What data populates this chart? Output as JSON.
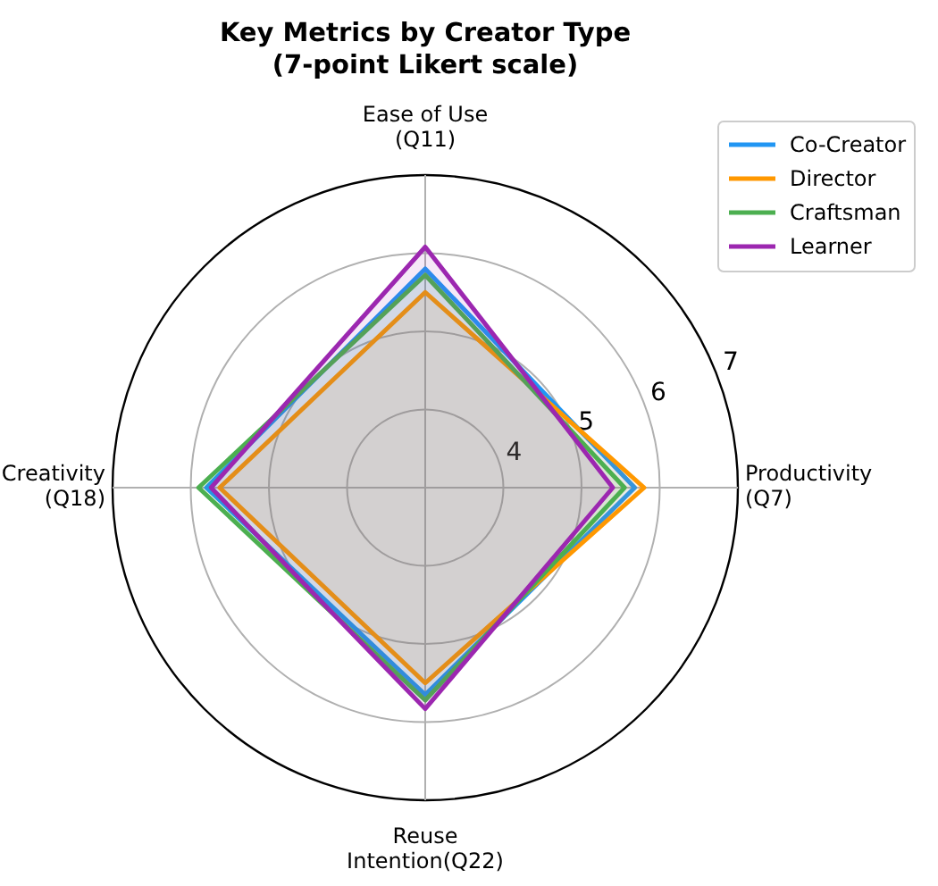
{
  "chart_data": {
    "type": "radar",
    "title": "Key Metrics by Creator Type\n(7-point Likert scale)",
    "categories": [
      "Ease of Use\n(Q11)",
      "Productivity\n(Q7)",
      "Reuse\nIntention(Q22)",
      "Creativity\n(Q18)"
    ],
    "series": [
      {
        "name": "Co-Creator",
        "color": "#2196f3",
        "values": [
          5.8,
          5.68,
          5.65,
          5.8
        ]
      },
      {
        "name": "Director",
        "color": "#ff9800",
        "values": [
          5.5,
          5.8,
          5.5,
          5.63
        ]
      },
      {
        "name": "Craftsman",
        "color": "#4caf50",
        "values": [
          5.72,
          5.55,
          5.72,
          5.9
        ]
      },
      {
        "name": "Learner",
        "color": "#9c27b0",
        "values": [
          6.08,
          5.4,
          5.83,
          5.74
        ]
      }
    ],
    "ylim": [
      3,
      7
    ],
    "yticks": [
      4,
      5,
      6,
      7
    ],
    "grid": true,
    "legend": "top right"
  }
}
